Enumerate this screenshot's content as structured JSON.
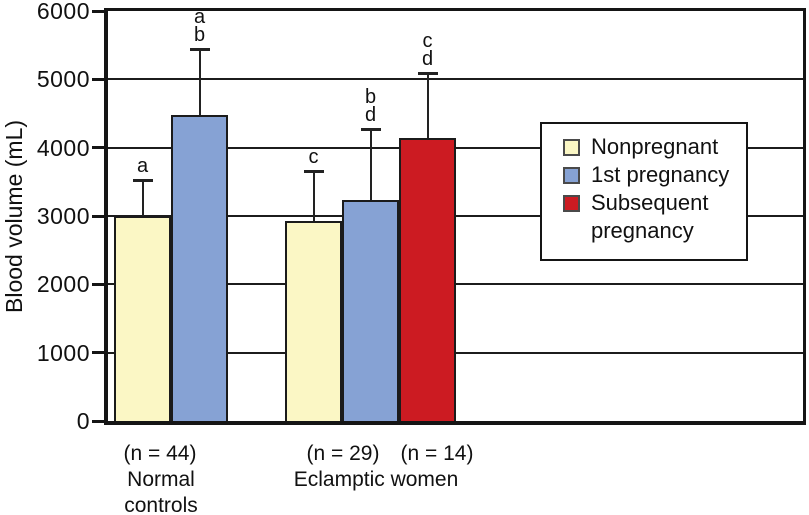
{
  "figure": {
    "y_axis_label": "Blood volume (mL)",
    "x_annotations": {
      "g1_n": "(n = 44)",
      "g1_name": "Normal\ncontrols",
      "g2_n1": "(n = 29)",
      "g2_n2": "(n = 14)",
      "g2_name": "Eclamptic women"
    }
  },
  "legend": {
    "items": [
      {
        "label": "Nonpregnant",
        "color": "#FBF7C5"
      },
      {
        "label": "1st pregnancy",
        "color": "#86A2D4"
      },
      {
        "label": "Subsequent\npregnancy",
        "color": "#CC1B22"
      }
    ]
  },
  "chart_data": {
    "type": "bar",
    "title": "",
    "xlabel": "",
    "ylabel": "Blood volume (mL)",
    "ylim": [
      0,
      6000
    ],
    "ytick_values": [
      0,
      1000,
      2000,
      3000,
      4000,
      5000,
      6000
    ],
    "grid": "horizontal",
    "legend_position": "inside-right",
    "series_colors": {
      "Nonpregnant": "#FBF7C5",
      "1st pregnancy": "#86A2D4",
      "Subsequent pregnancy": "#CC1B22"
    },
    "groups": [
      {
        "label": "Normal controls",
        "bars": [
          {
            "series": "Nonpregnant",
            "n": "(n = 44)",
            "value": 3000,
            "error_top": 3520,
            "letters": [
              "a"
            ]
          },
          {
            "series": "1st pregnancy",
            "value": 4480,
            "error_top": 5440,
            "letters": [
              "a",
              "b"
            ]
          }
        ]
      },
      {
        "label": "Eclamptic women",
        "bars": [
          {
            "series": "Nonpregnant",
            "n": "(n = 29)",
            "value": 2930,
            "error_top": 3660,
            "letters": [
              "c"
            ]
          },
          {
            "series": "1st pregnancy",
            "value": 3230,
            "error_top": 4270,
            "letters": [
              "b",
              "d"
            ]
          },
          {
            "series": "Subsequent pregnancy",
            "n": "(n = 14)",
            "value": 4140,
            "error_top": 5100,
            "letters": [
              "c",
              "d"
            ]
          }
        ]
      }
    ]
  }
}
